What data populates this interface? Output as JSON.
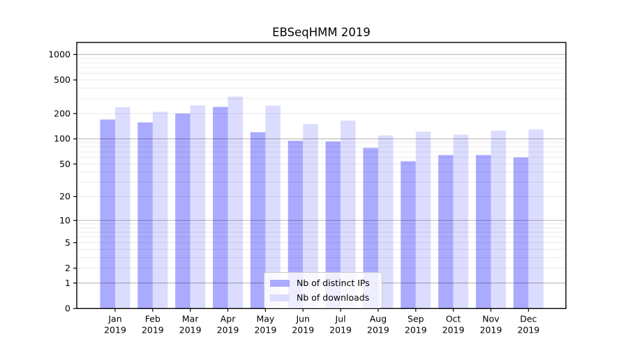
{
  "chart_data": {
    "type": "bar",
    "title": "EBSeqHMM 2019",
    "categories": [
      "Jan",
      "Feb",
      "Mar",
      "Apr",
      "May",
      "Jun",
      "Jul",
      "Aug",
      "Sep",
      "Oct",
      "Nov",
      "Dec"
    ],
    "x_tick_second_line": "2019",
    "series": [
      {
        "name": "Nb of distinct IPs",
        "color": "#aaaaff",
        "values": [
          170,
          157,
          200,
          240,
          120,
          95,
          93,
          78,
          54,
          64,
          64,
          60
        ]
      },
      {
        "name": "Nb of downloads",
        "color": "#dcdcff",
        "values": [
          238,
          210,
          250,
          318,
          248,
          150,
          165,
          110,
          122,
          112,
          125,
          130
        ]
      }
    ],
    "yticks": [
      0,
      1,
      2,
      5,
      10,
      20,
      50,
      100,
      200,
      500,
      1000
    ],
    "yscale": "log10(value+1)",
    "ylim": [
      0,
      1390
    ],
    "grid": "horizontal major+minor, drawn over bars",
    "legend_position": "bottom-center inside plot"
  },
  "colors": {
    "background": "#ffffff",
    "frame": "#000000",
    "major_grid": "rgba(0,0,0,0.29)",
    "minor_grid": "rgba(0,0,0,0.085)",
    "bar_dark": "#aaaaff",
    "bar_light": "#dcdcff"
  }
}
